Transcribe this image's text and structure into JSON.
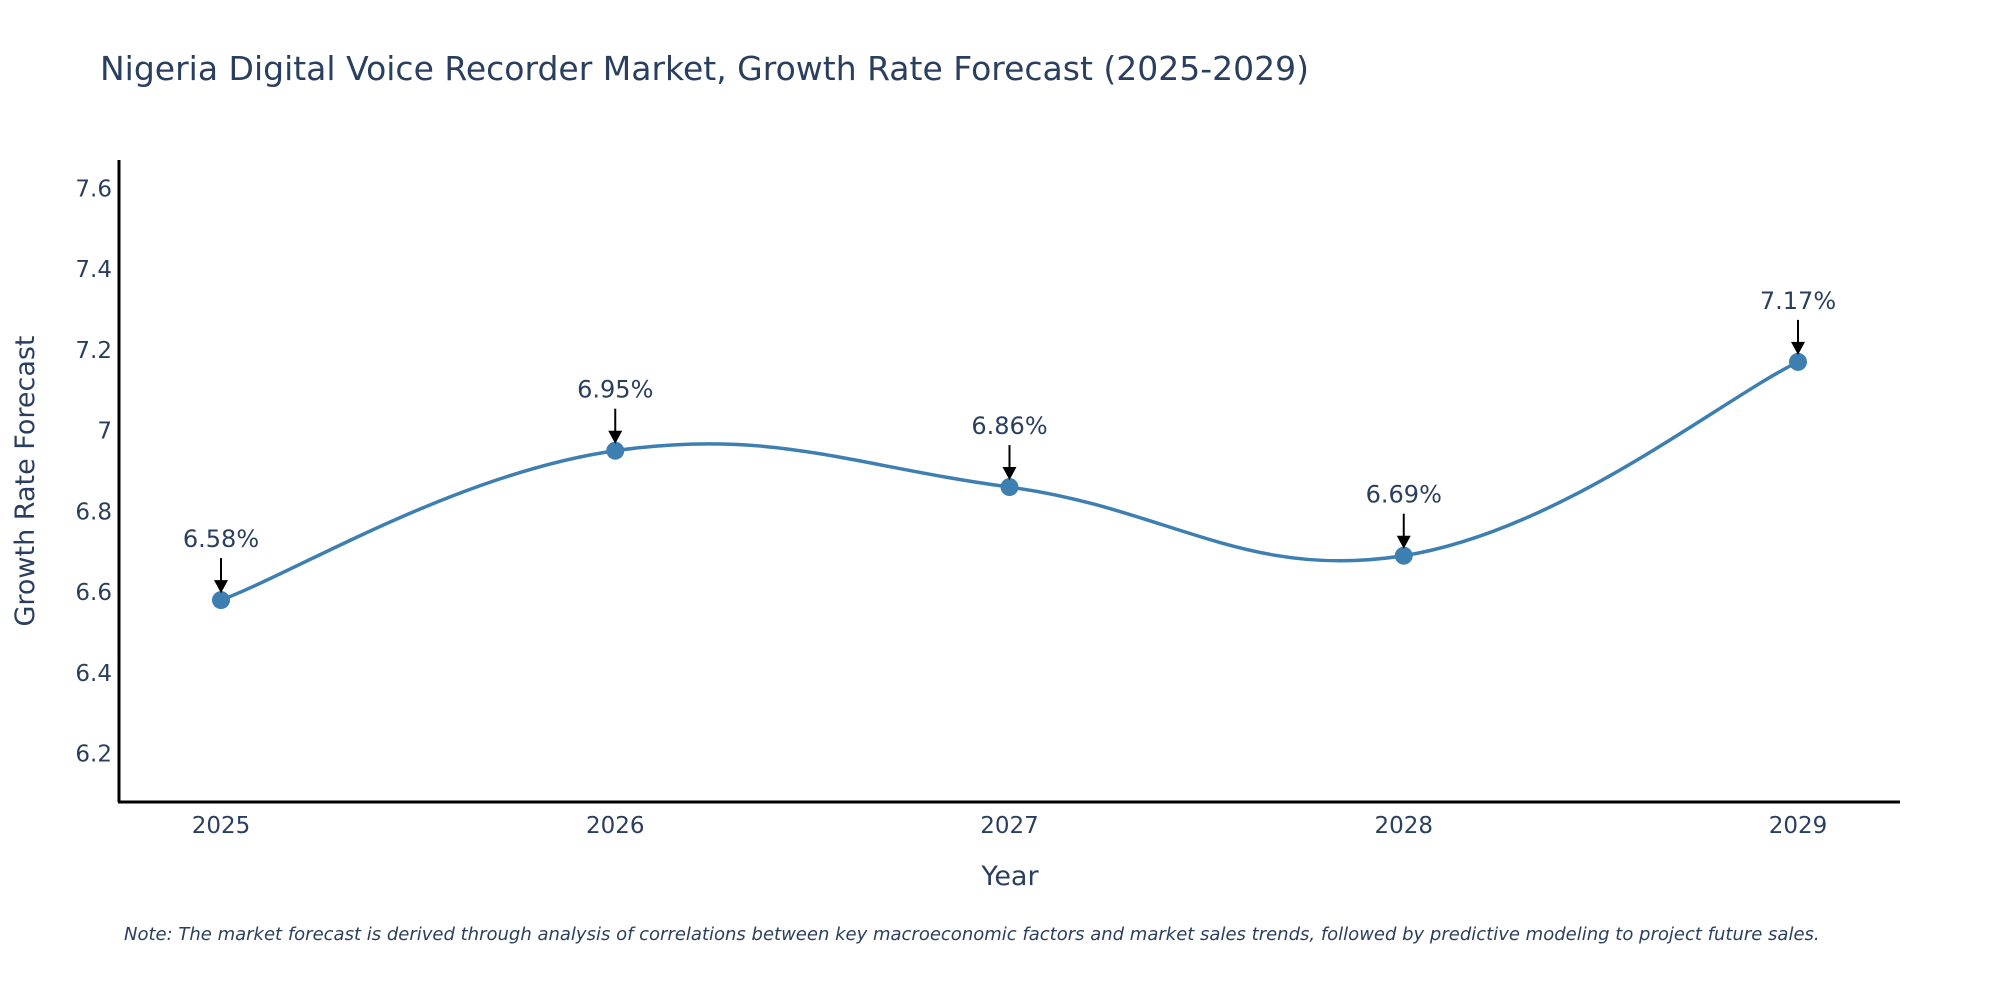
{
  "chart_data": {
    "type": "line",
    "title": "Nigeria Digital Voice Recorder Market, Growth Rate Forecast (2025-2029)",
    "xlabel": "Year",
    "ylabel": "Growth Rate Forecast",
    "categories": [
      "2025",
      "2026",
      "2027",
      "2028",
      "2029"
    ],
    "series": [
      {
        "name": "Growth Rate Forecast",
        "values": [
          6.58,
          6.95,
          6.86,
          6.69,
          7.17
        ],
        "color": "#3d7fb0"
      }
    ],
    "annotations": [
      "6.58%",
      "6.95%",
      "6.86%",
      "6.69%",
      "7.17%"
    ],
    "y_ticks": [
      6.2,
      6.4,
      6.6,
      6.8,
      7,
      7.2,
      7.4,
      7.6
    ],
    "y_tick_labels": [
      "6.2",
      "6.4",
      "6.6",
      "6.8",
      "7",
      "7.2",
      "7.4",
      "7.6"
    ],
    "ylim": [
      6.08,
      7.67
    ],
    "grid": false,
    "line_shape": "spline"
  },
  "note": "Note: The market forecast is derived through analysis of correlations between key macroeconomic factors and market sales trends, followed by predictive modeling to project future sales."
}
